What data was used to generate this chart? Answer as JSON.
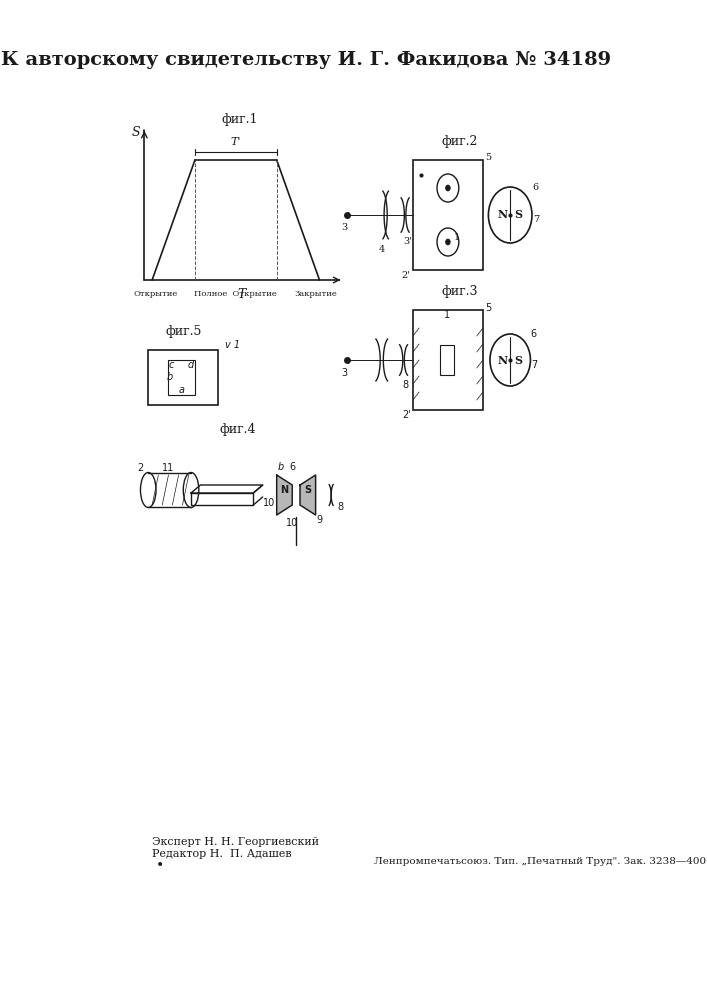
{
  "title": "К авторскому свидетельству И. Г. Факидова № 34189",
  "title_fontsize": 14,
  "expert_text": "Эксперт Н. Н. Георгиевский\nРедактор Н.  П. Адашев",
  "publisher_text": "Ленпромпечатьсоюз. Тип. „Печатный Труд\". Зак. 3238—400",
  "bg_color": "#ffffff",
  "ink_color": "#1a1a1a"
}
